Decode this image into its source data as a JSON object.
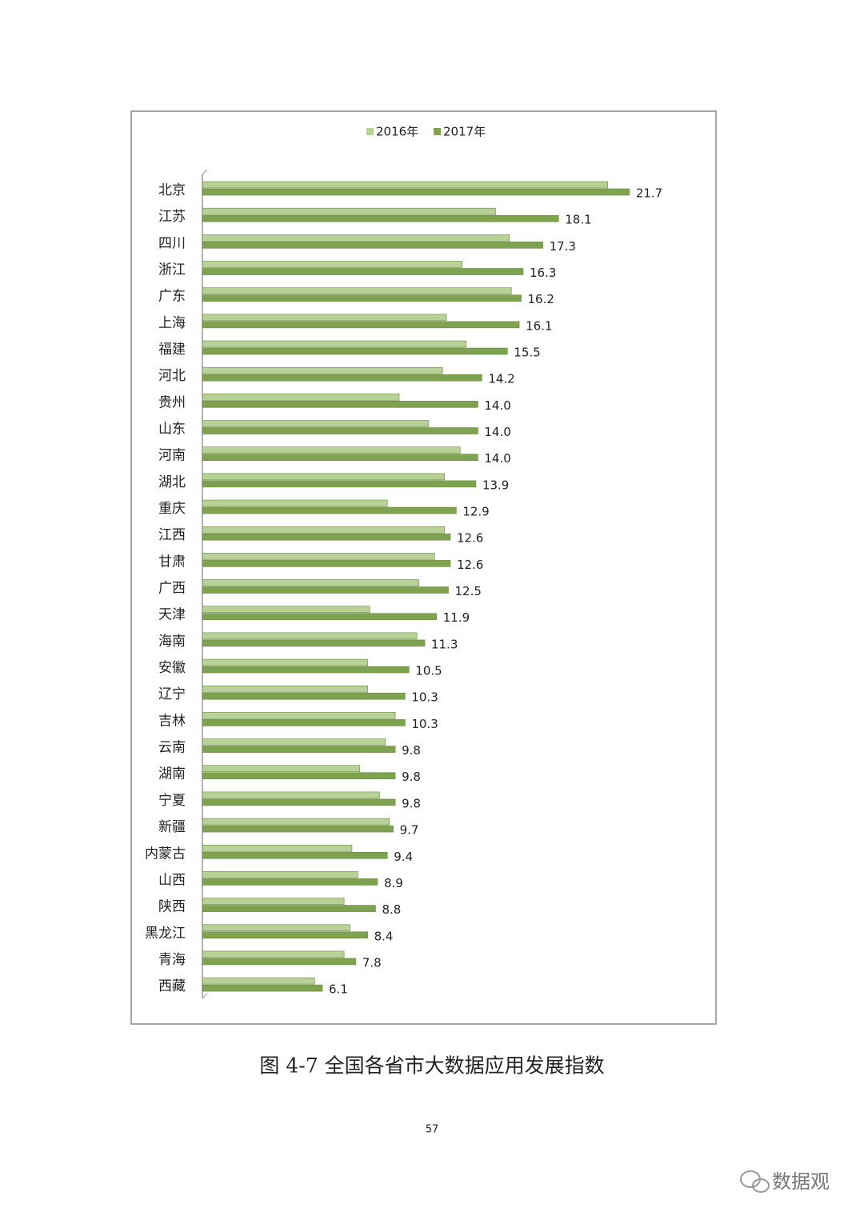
{
  "chart_data": {
    "type": "bar",
    "orientation": "horizontal",
    "categories": [
      "北京",
      "江苏",
      "四川",
      "浙江",
      "广东",
      "上海",
      "福建",
      "河北",
      "贵州",
      "山东",
      "河南",
      "湖北",
      "重庆",
      "江西",
      "甘肃",
      "广西",
      "天津",
      "海南",
      "安徽",
      "辽宁",
      "吉林",
      "云南",
      "湖南",
      "宁夏",
      "新疆",
      "内蒙古",
      "山西",
      "陕西",
      "黑龙江",
      "青海",
      "西藏"
    ],
    "series": [
      {
        "name": "2016年",
        "color": "#b7d197",
        "values": [
          20.6,
          14.9,
          15.6,
          13.2,
          15.7,
          12.4,
          13.4,
          12.2,
          10.0,
          11.5,
          13.1,
          12.3,
          9.4,
          12.3,
          11.8,
          11.0,
          8.5,
          10.9,
          8.4,
          8.4,
          9.8,
          9.3,
          8.0,
          9.0,
          9.5,
          7.6,
          7.9,
          7.2,
          7.5,
          7.2,
          5.7
        ]
      },
      {
        "name": "2017年",
        "color": "#7fa250",
        "values": [
          21.7,
          18.1,
          17.3,
          16.3,
          16.2,
          16.1,
          15.5,
          14.2,
          14.0,
          14.0,
          14.0,
          13.9,
          12.9,
          12.6,
          12.6,
          12.5,
          11.9,
          11.3,
          10.5,
          10.3,
          10.3,
          9.8,
          9.8,
          9.8,
          9.7,
          9.4,
          8.9,
          8.8,
          8.4,
          7.8,
          6.1
        ],
        "value_labels": [
          "21.7",
          "18.1",
          "17.3",
          "16.3",
          "16.2",
          "16.1",
          "15.5",
          "14.2",
          "14.0",
          "14.0",
          "14.0",
          "13.9",
          "12.9",
          "12.6",
          "12.6",
          "12.5",
          "11.9",
          "11.3",
          "10.5",
          "10.3",
          "10.3",
          "9.8",
          "9.8",
          "9.8",
          "9.7",
          "9.4",
          "8.9",
          "8.8",
          "8.4",
          "7.8",
          "6.1"
        ]
      }
    ],
    "xlim": [
      0,
      25
    ],
    "legend": "top"
  },
  "caption": "图 4-7  全国各省市大数据应用发展指数",
  "page_number": "57",
  "watermark": "数据观"
}
